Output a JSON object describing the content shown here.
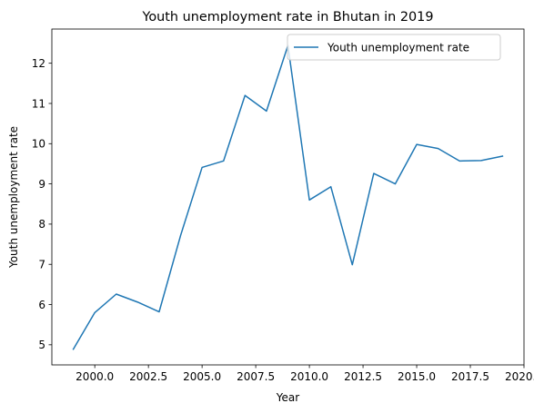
{
  "chart_data": {
    "type": "line",
    "title": "Youth unemployment rate in Bhutan in 2019",
    "xlabel": "Year",
    "ylabel": "Youth unemployment rate",
    "xlim": [
      1998.0,
      2020.0
    ],
    "ylim": [
      4.5,
      12.85
    ],
    "xticks": [
      2000.0,
      2002.5,
      2005.0,
      2007.5,
      2010.0,
      2012.5,
      2015.0,
      2017.5,
      2020.0
    ],
    "xtick_labels": [
      "2000.0",
      "2002.5",
      "2005.0",
      "2007.5",
      "2010.0",
      "2012.5",
      "2015.0",
      "2017.5",
      "2020.0"
    ],
    "yticks": [
      5,
      6,
      7,
      8,
      9,
      10,
      11,
      12
    ],
    "ytick_labels": [
      "5",
      "6",
      "7",
      "8",
      "9",
      "10",
      "11",
      "12"
    ],
    "grid": false,
    "legend_position": "top-right",
    "series": [
      {
        "name": "Youth unemployment rate",
        "color": "#1f77b4",
        "x": [
          1999,
          2000,
          2001,
          2002,
          2003,
          2004,
          2005,
          2006,
          2007,
          2008,
          2009,
          2010,
          2011,
          2012,
          2013,
          2014,
          2015,
          2016,
          2017,
          2018,
          2019
        ],
        "values": [
          4.89,
          5.8,
          6.26,
          6.06,
          5.82,
          7.72,
          9.41,
          9.57,
          11.2,
          10.81,
          12.44,
          8.6,
          8.93,
          6.99,
          9.26,
          9.0,
          9.98,
          9.88,
          9.57,
          9.58,
          9.69
        ]
      }
    ]
  }
}
